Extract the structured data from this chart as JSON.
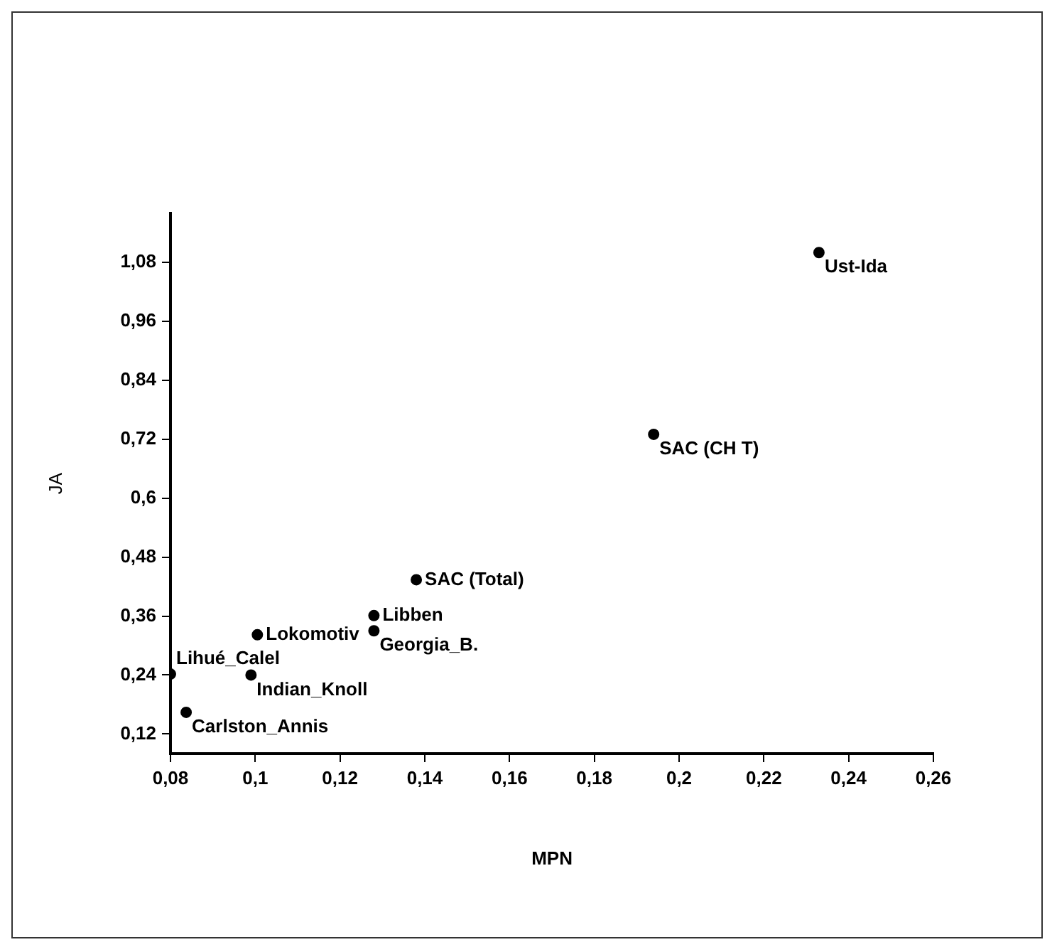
{
  "chart_data": {
    "type": "scatter",
    "xlabel": "MPN",
    "ylabel": "JA",
    "x": [
      0.233,
      0.194,
      0.138,
      0.128,
      0.128,
      0.1005,
      0.08,
      0.099,
      0.0837
    ],
    "values": [
      1.1,
      0.73,
      0.434,
      0.361,
      0.33,
      0.322,
      0.242,
      0.24,
      0.164
    ],
    "color": "#000000",
    "marker": "circle",
    "grid": false,
    "legend": false,
    "xlim": [
      0.08,
      0.26
    ],
    "ylim": [
      0.08,
      1.18
    ],
    "xticks": [
      {
        "value": 0.08,
        "label": "0,08"
      },
      {
        "value": 0.1,
        "label": "0,1"
      },
      {
        "value": 0.12,
        "label": "0,12"
      },
      {
        "value": 0.14,
        "label": "0,14"
      },
      {
        "value": 0.16,
        "label": "0,16"
      },
      {
        "value": 0.18,
        "label": "0,18"
      },
      {
        "value": 0.2,
        "label": "0,2"
      },
      {
        "value": 0.22,
        "label": "0,22"
      },
      {
        "value": 0.24,
        "label": "0,24"
      },
      {
        "value": 0.26,
        "label": "0,26"
      }
    ],
    "yticks": [
      {
        "value": 0.12,
        "label": "0,12"
      },
      {
        "value": 0.24,
        "label": "0,24"
      },
      {
        "value": 0.36,
        "label": "0,36"
      },
      {
        "value": 0.48,
        "label": "0,48"
      },
      {
        "value": 0.6,
        "label": "0,6"
      },
      {
        "value": 0.72,
        "label": "0,72"
      },
      {
        "value": 0.84,
        "label": "0,84"
      },
      {
        "value": 0.96,
        "label": "0,96"
      },
      {
        "value": 1.08,
        "label": "1,08"
      }
    ],
    "annotations": [
      {
        "text": "Ust-Ida",
        "x": 0.233,
        "y": 1.1
      },
      {
        "text": "SAC (CH T)",
        "x": 0.194,
        "y": 0.73
      },
      {
        "text": "SAC (Total)",
        "x": 0.138,
        "y": 0.434
      },
      {
        "text": "Libben",
        "x": 0.128,
        "y": 0.361
      },
      {
        "text": "Georgia_B.",
        "x": 0.128,
        "y": 0.33
      },
      {
        "text": "Lokomotiv",
        "x": 0.1005,
        "y": 0.322
      },
      {
        "text": "Lihué_Calel",
        "x": 0.08,
        "y": 0.242
      },
      {
        "text": "Indian_Knoll",
        "x": 0.099,
        "y": 0.24
      },
      {
        "text": "Carlston_Annis",
        "x": 0.0837,
        "y": 0.164
      }
    ]
  }
}
